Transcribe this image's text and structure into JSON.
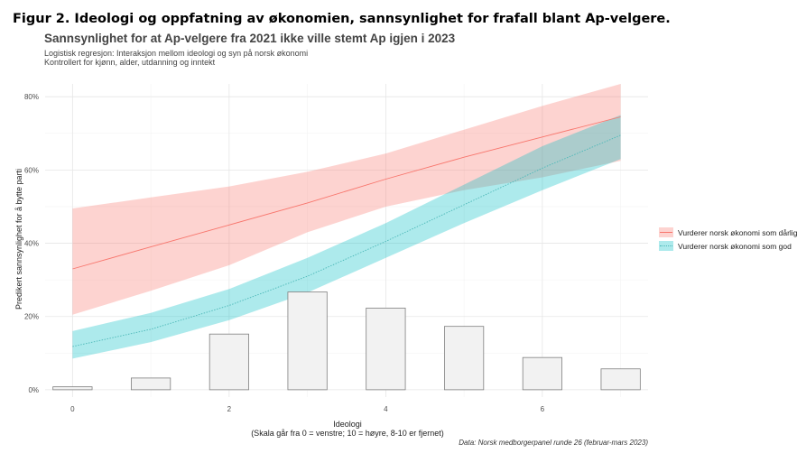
{
  "figure_title": "Figur 2. Ideologi og oppfatning av økonomien, sannsynlighet for frafall blant Ap-velgere.",
  "chart_data": {
    "type": "line",
    "title": "Sannsynlighet for at Ap-velgere fra 2021 ikke ville stemt Ap igjen i 2023",
    "subtitle_lines": [
      "Logistisk regresjon: Interaksjon mellom ideologi og syn på norsk økonomi",
      "Kontrollert for kjønn, alder, utdanning og inntekt"
    ],
    "xlabel_lines": [
      "Ideologi",
      "(Skala går fra 0 = venstre; 10 = høyre, 8-10 er fjernet)"
    ],
    "ylabel": "Predikert sannsynlighet for å bytte parti",
    "caption": "Data: Norsk medborgerpanel runde 26 (februar-mars 2023)",
    "xlim": [
      -0.35,
      7.35
    ],
    "ylim": [
      -0.02,
      0.835
    ],
    "x_ticks": [
      0,
      2,
      4,
      6
    ],
    "x_tick_labels": [
      "0",
      "2",
      "4",
      "6"
    ],
    "y_ticks": [
      0,
      0.2,
      0.4,
      0.6,
      0.8
    ],
    "y_tick_labels": [
      "0%",
      "20%",
      "40%",
      "60%",
      "80%"
    ],
    "legend_position": "right",
    "series": [
      {
        "name": "Vurderer norsk økonomi som dårlig",
        "line_color": "#F8766D",
        "ribbon_color": "#F8766D",
        "line_style": "solid",
        "x": [
          0,
          1,
          2,
          3,
          4,
          5,
          6,
          7
        ],
        "y": [
          0.33,
          0.39,
          0.45,
          0.51,
          0.575,
          0.635,
          0.69,
          0.745
        ],
        "lower": [
          0.205,
          0.27,
          0.34,
          0.43,
          0.5,
          0.545,
          0.58,
          0.625
        ],
        "upper": [
          0.495,
          0.525,
          0.555,
          0.595,
          0.645,
          0.71,
          0.775,
          0.835
        ]
      },
      {
        "name": "Vurderer norsk økonomi som god",
        "line_color": "#4CB8B8",
        "ribbon_color": "#00BFC4",
        "line_style": "dotted",
        "x": [
          0,
          1,
          2,
          3,
          4,
          5,
          6,
          7
        ],
        "y": [
          0.118,
          0.165,
          0.23,
          0.31,
          0.405,
          0.505,
          0.605,
          0.695
        ],
        "lower": [
          0.085,
          0.13,
          0.19,
          0.265,
          0.36,
          0.455,
          0.545,
          0.63
        ],
        "upper": [
          0.16,
          0.21,
          0.275,
          0.36,
          0.455,
          0.56,
          0.665,
          0.75
        ]
      }
    ],
    "histogram": {
      "fill": "#F2F2F2",
      "stroke": "#7F7F7F",
      "bins": [
        0,
        1,
        2,
        3,
        4,
        5,
        6,
        7
      ],
      "values": [
        0.008,
        0.032,
        0.152,
        0.267,
        0.223,
        0.173,
        0.088,
        0.057
      ]
    }
  }
}
